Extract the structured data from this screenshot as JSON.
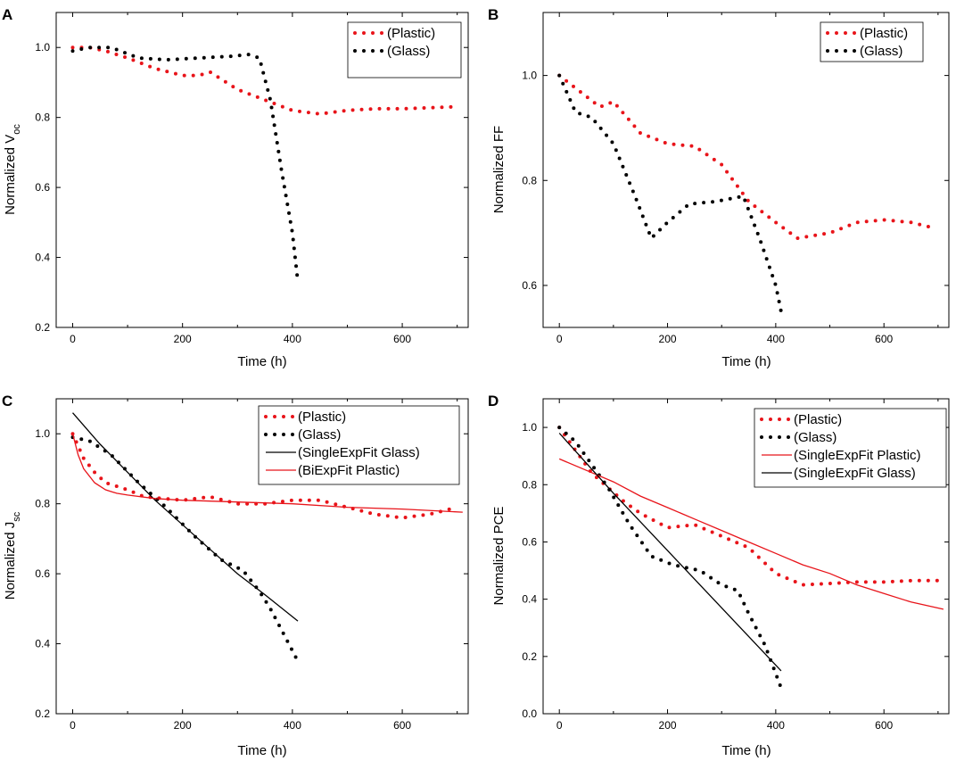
{
  "chart_data": [
    {
      "panel": "A",
      "type": "line",
      "xlabel": "Time (h)",
      "ylabel": "Normalized V",
      "ylabel_sub": "oc",
      "xlim": [
        -30,
        720
      ],
      "ylim": [
        0.2,
        1.1
      ],
      "xticks": [
        0,
        200,
        400,
        600
      ],
      "yticks": [
        0.2,
        0.4,
        0.6,
        0.8,
        1.0
      ],
      "legend_position": "top-right",
      "series": [
        {
          "name": "(Plastic)",
          "style": "dotted",
          "color": "#e8141a",
          "x": [
            0,
            30,
            60,
            100,
            150,
            200,
            230,
            250,
            300,
            350,
            400,
            450,
            500,
            550,
            600,
            650,
            690
          ],
          "y": [
            1.0,
            1.0,
            0.99,
            0.97,
            0.94,
            0.92,
            0.92,
            0.93,
            0.88,
            0.85,
            0.82,
            0.81,
            0.82,
            0.825,
            0.825,
            0.828,
            0.83
          ]
        },
        {
          "name": "(Glass)",
          "style": "dotted",
          "color": "#000000",
          "x": [
            0,
            30,
            70,
            120,
            170,
            230,
            290,
            320,
            340,
            360,
            380,
            400,
            410
          ],
          "y": [
            0.99,
            1.0,
            1.0,
            0.97,
            0.965,
            0.97,
            0.975,
            0.98,
            0.97,
            0.85,
            0.65,
            0.47,
            0.33
          ]
        }
      ]
    },
    {
      "panel": "B",
      "type": "line",
      "xlabel": "Time (h)",
      "ylabel": "Normalized FF",
      "xlim": [
        -30,
        720
      ],
      "ylim": [
        0.52,
        1.12
      ],
      "xticks": [
        0,
        200,
        400,
        600
      ],
      "yticks": [
        0.6,
        0.8,
        1.0
      ],
      "legend_position": "top-right",
      "series": [
        {
          "name": "(Plastic)",
          "style": "dotted",
          "color": "#e8141a",
          "x": [
            0,
            25,
            50,
            75,
            100,
            150,
            200,
            250,
            300,
            350,
            400,
            440,
            500,
            550,
            600,
            650,
            690
          ],
          "y": [
            1.0,
            0.98,
            0.96,
            0.94,
            0.95,
            0.89,
            0.87,
            0.865,
            0.83,
            0.76,
            0.72,
            0.69,
            0.7,
            0.72,
            0.725,
            0.72,
            0.71
          ]
        },
        {
          "name": "(Glass)",
          "style": "dotted",
          "color": "#000000",
          "x": [
            0,
            30,
            60,
            100,
            140,
            170,
            200,
            240,
            290,
            340,
            370,
            400,
            410
          ],
          "y": [
            1.0,
            0.93,
            0.92,
            0.87,
            0.77,
            0.69,
            0.72,
            0.755,
            0.76,
            0.77,
            0.69,
            0.6,
            0.55
          ]
        }
      ]
    },
    {
      "panel": "C",
      "type": "line",
      "xlabel": "Time (h)",
      "ylabel": "Normalized J",
      "ylabel_sub": "sc",
      "xlim": [
        -30,
        720
      ],
      "ylim": [
        0.2,
        1.1
      ],
      "xticks": [
        0,
        200,
        400,
        600
      ],
      "yticks": [
        0.2,
        0.4,
        0.6,
        0.8,
        1.0
      ],
      "legend_position": "top-right",
      "series": [
        {
          "name": "(Plastic)",
          "style": "dotted",
          "color": "#e8141a",
          "x": [
            0,
            20,
            40,
            60,
            100,
            130,
            200,
            250,
            300,
            350,
            400,
            450,
            500,
            550,
            600,
            650,
            700
          ],
          "y": [
            1.0,
            0.93,
            0.89,
            0.86,
            0.84,
            0.82,
            0.81,
            0.82,
            0.8,
            0.8,
            0.81,
            0.81,
            0.79,
            0.77,
            0.76,
            0.77,
            0.79
          ]
        },
        {
          "name": "(Glass)",
          "style": "dotted",
          "color": "#000000",
          "x": [
            0,
            30,
            70,
            120,
            170,
            220,
            270,
            310,
            340,
            360,
            380,
            400,
            410
          ],
          "y": [
            0.99,
            0.98,
            0.94,
            0.86,
            0.79,
            0.71,
            0.64,
            0.61,
            0.55,
            0.5,
            0.44,
            0.38,
            0.35
          ]
        },
        {
          "name": "(SingleExpFit Glass)",
          "style": "solid",
          "color": "#000000",
          "x": [
            0,
            50,
            100,
            150,
            200,
            250,
            300,
            350,
            410
          ],
          "y": [
            1.06,
            0.97,
            0.89,
            0.81,
            0.74,
            0.67,
            0.6,
            0.54,
            0.465
          ]
        },
        {
          "name": "(BiExpFit Plastic)",
          "style": "solid",
          "color": "#e8141a",
          "x": [
            0,
            10,
            20,
            40,
            60,
            80,
            100,
            150,
            200,
            300,
            400,
            500,
            600,
            710
          ],
          "y": [
            1.0,
            0.94,
            0.9,
            0.86,
            0.84,
            0.83,
            0.825,
            0.815,
            0.81,
            0.805,
            0.8,
            0.79,
            0.785,
            0.776
          ]
        }
      ]
    },
    {
      "panel": "D",
      "type": "line",
      "xlabel": "Time (h)",
      "ylabel": "Normalized PCE",
      "xlim": [
        -30,
        720
      ],
      "ylim": [
        0.0,
        1.1
      ],
      "xticks": [
        0,
        200,
        400,
        600
      ],
      "yticks": [
        0.0,
        0.2,
        0.4,
        0.6,
        0.8,
        1.0
      ],
      "legend_position": "top-right",
      "series": [
        {
          "name": "(Plastic)",
          "style": "dotted",
          "color": "#e8141a",
          "x": [
            0,
            30,
            60,
            90,
            120,
            150,
            200,
            250,
            300,
            350,
            400,
            450,
            500,
            550,
            600,
            650,
            700
          ],
          "y": [
            1.0,
            0.92,
            0.84,
            0.79,
            0.74,
            0.7,
            0.65,
            0.66,
            0.62,
            0.58,
            0.49,
            0.45,
            0.455,
            0.46,
            0.46,
            0.465,
            0.465
          ]
        },
        {
          "name": "(Glass)",
          "style": "dotted",
          "color": "#000000",
          "x": [
            0,
            30,
            60,
            90,
            130,
            170,
            210,
            260,
            300,
            330,
            350,
            380,
            400,
            410
          ],
          "y": [
            1.0,
            0.95,
            0.87,
            0.79,
            0.66,
            0.55,
            0.52,
            0.5,
            0.45,
            0.43,
            0.35,
            0.24,
            0.14,
            0.09
          ]
        },
        {
          "name": "(SingleExpFit Plastic)",
          "style": "solid",
          "color": "#e8141a",
          "x": [
            0,
            50,
            100,
            150,
            200,
            250,
            300,
            350,
            400,
            450,
            500,
            550,
            600,
            650,
            710
          ],
          "y": [
            0.89,
            0.85,
            0.81,
            0.76,
            0.72,
            0.68,
            0.64,
            0.6,
            0.56,
            0.52,
            0.49,
            0.45,
            0.42,
            0.39,
            0.365
          ]
        },
        {
          "name": "(SingleExpFit Glass)",
          "style": "solid",
          "color": "#000000",
          "x": [
            0,
            100,
            200,
            300,
            410
          ],
          "y": [
            0.98,
            0.77,
            0.57,
            0.37,
            0.15
          ]
        }
      ]
    }
  ]
}
